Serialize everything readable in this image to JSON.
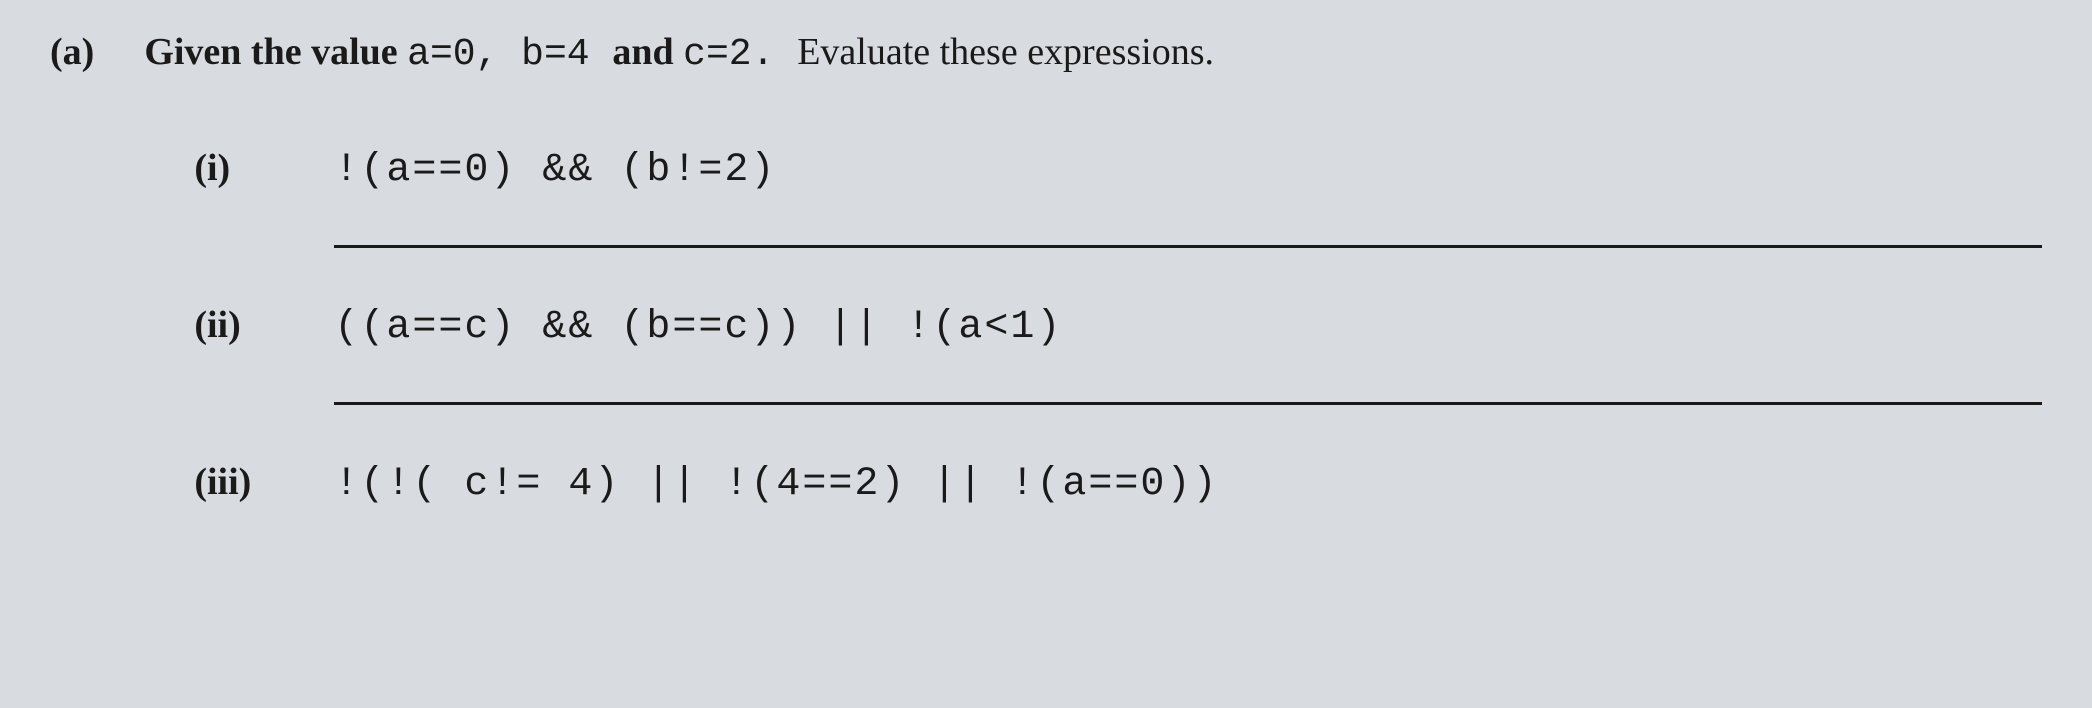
{
  "question": {
    "part_label": "(a)",
    "prompt_bold": "Given the value ",
    "prompt_vars": "a=0, b=4 ",
    "prompt_and": "and ",
    "prompt_c": "c=2. ",
    "prompt_tail": "Evaluate these expressions.",
    "items": [
      {
        "label": "(i)",
        "expression": "!(a==0) && (b!=2)"
      },
      {
        "label": "(ii)",
        "expression": "((a==c) && (b==c)) ||  !(a<1)"
      },
      {
        "label": "(iii)",
        "expression": "!(!( c!= 4) || !(4==2) || !(a==0))"
      }
    ]
  },
  "styling": {
    "background_color": "#d8dce0",
    "text_color": "#1a1a1a",
    "line_color": "#1a1a1a",
    "font_size_prompt": 38,
    "font_size_expression": 40,
    "font_family_body": "Georgia, 'Times New Roman', serif",
    "font_family_mono": "'Courier New', monospace"
  }
}
